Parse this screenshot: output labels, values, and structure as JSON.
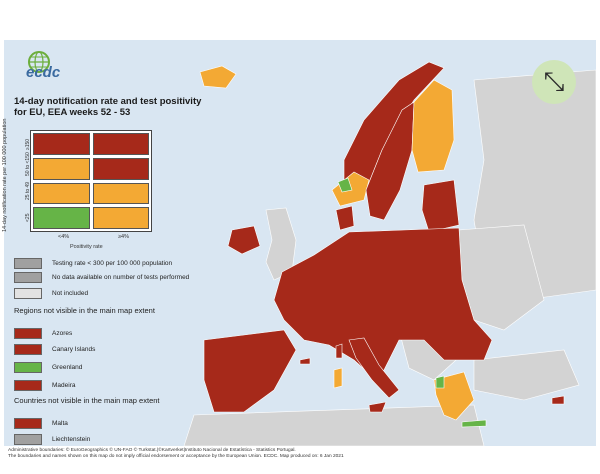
{
  "colors": {
    "sea": "#d9e6f2",
    "nonmember": "#d3d3d3",
    "darkred": "#a6291a",
    "orange": "#f3a934",
    "green": "#66b447",
    "lightgrey": "#e2e2e2",
    "grey": "#a0a0a0",
    "logo_blue": "#3a6aa0",
    "logo_green": "#6cae3c"
  },
  "logo": {
    "text": "ecdc",
    "icon": "globe-logo-icon"
  },
  "title": "14-day notification rate and test positivity for EU, EEA weeks 52 - 53",
  "matrix": {
    "y_axis_label": "14-day notification rate per 100 000 population",
    "y_ticks": [
      "≥150",
      "50 to <150",
      "25 to 49",
      "<25"
    ],
    "x_axis_label": "Positivity rate",
    "x_ticks": [
      "<4%",
      "≥4%"
    ],
    "cells": [
      [
        "darkred",
        "darkred"
      ],
      [
        "orange",
        "darkred"
      ],
      [
        "orange",
        "orange"
      ],
      [
        "green",
        "orange"
      ]
    ]
  },
  "legend_items": [
    {
      "label": "Testing rate < 300 per 100 000 population",
      "color": "grey"
    },
    {
      "label": "No data available on number of tests performed",
      "color": "grey"
    },
    {
      "label": "Not included",
      "color": "lightgrey"
    }
  ],
  "regions_heading": "Regions not visible in the main map extent",
  "regions": [
    {
      "label": "Azores",
      "color": "darkred"
    },
    {
      "label": "Canary Islands",
      "color": "darkred"
    },
    {
      "label": "Greenland",
      "color": "green"
    },
    {
      "label": "Madeira",
      "color": "darkred"
    }
  ],
  "countries_heading": "Countries not visible in the main map extent",
  "countries": [
    {
      "label": "Malta",
      "color": "darkred"
    },
    {
      "label": "Liechtenstein",
      "color": "grey"
    }
  ],
  "footer": {
    "line1": "Administrative boundaries: © EuroGeographics © UN-FAO © Turkstat.|©Kartverket|Instituto Nacional de Estatística - Statistics Portugal.",
    "line2": "The boundaries and names shown on this map do not imply official endorsement or acceptance by the European Union. ECDC. Map produced on: 6 Jan 2021"
  },
  "zoom_icon": "expand-arrows-icon"
}
